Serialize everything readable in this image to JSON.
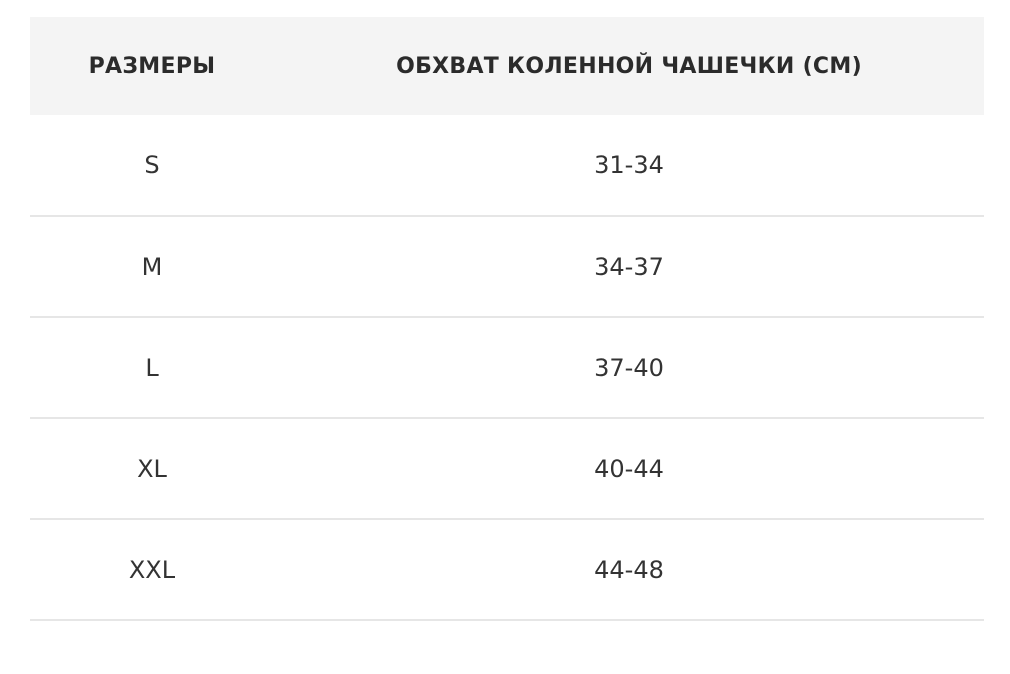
{
  "table": {
    "headers": [
      "РАЗМЕРЫ",
      "ОБХВАТ КОЛЕННОЙ ЧАШЕЧКИ (СМ)"
    ],
    "rows": [
      [
        "S",
        "31-34"
      ],
      [
        "M",
        "34-37"
      ],
      [
        "L",
        "37-40"
      ],
      [
        "XL",
        "40-44"
      ],
      [
        "XXL",
        "44-48"
      ]
    ]
  },
  "colors": {
    "header_bg": "#f4f4f4",
    "divider": "#e6e6e6",
    "text": "#333333"
  }
}
